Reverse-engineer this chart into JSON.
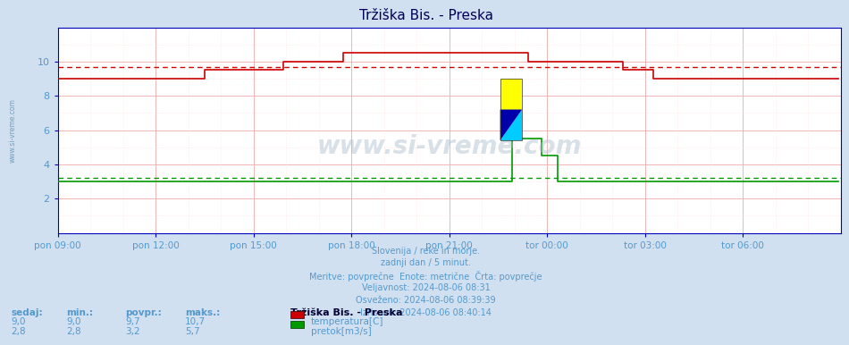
{
  "title": "Tržiška Bis. - Preska",
  "bg_color": "#d0e0f0",
  "plot_bg_color": "#ffffff",
  "x_labels": [
    "pon 09:00",
    "pon 12:00",
    "pon 15:00",
    "pon 18:00",
    "pon 21:00",
    "tor 00:00",
    "tor 03:00",
    "tor 06:00"
  ],
  "n_vticks": 8,
  "ylim": [
    0,
    12
  ],
  "yticks": [
    2,
    4,
    6,
    8,
    10
  ],
  "temp_color": "#cc0000",
  "flow_color": "#009900",
  "avg_temp_line": 9.7,
  "avg_flow_line": 3.2,
  "grid_color_major": "#f0aaaa",
  "grid_color_minor": "#ffd8d8",
  "axis_color": "#0000bb",
  "tick_label_color": "#5599cc",
  "title_color": "#000055",
  "sidebar_text": "www.si-vreme.com",
  "watermark": "www.si-vreme.com",
  "subtitle_lines": [
    "Slovenija / reke in morje.",
    "zadnji dan / 5 minut.",
    "Meritve: povprečne  Enote: metrične  Črta: povprečje",
    "Veljavnost: 2024-08-06 08:31",
    "Osveženo: 2024-08-06 08:39:39",
    "Izrisano: 2024-08-06 08:40:14"
  ],
  "table_headers": [
    "sedaj:",
    "min.:",
    "povpr.:",
    "maks.:"
  ],
  "temp_row": [
    "9,0",
    "9,0",
    "9,7",
    "10,7"
  ],
  "flow_row": [
    "2,8",
    "2,8",
    "3,2",
    "5,7"
  ],
  "temp_label": "temperatura[C]",
  "flow_label": "pretok[m3/s]",
  "station_label": "Tržiška Bis. - Preska",
  "n_points": 288
}
